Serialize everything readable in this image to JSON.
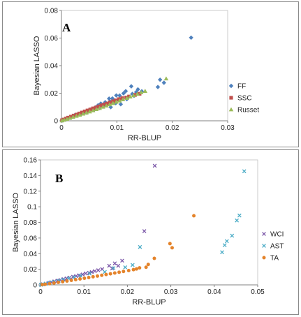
{
  "chart_data": [
    {
      "type": "scatter",
      "panel_label": "A",
      "xlabel": "RR-BLUP",
      "ylabel": "Bayesian LASSO",
      "xlim": [
        0,
        0.03
      ],
      "ylim": [
        0,
        0.08
      ],
      "xticks": [
        "0",
        "0.01",
        "0.02",
        "0.03"
      ],
      "yticks": [
        "0",
        "0.02",
        "0.04",
        "0.06",
        "0.08"
      ],
      "legend_position": "right",
      "series": [
        {
          "name": "FF",
          "color": "#4f81bd",
          "marker": "diamond",
          "points": [
            [
              0.0234,
              0.0603
            ],
            [
              0.0178,
              0.0298
            ],
            [
              0.0174,
              0.0245
            ],
            [
              0.0185,
              0.0276
            ],
            [
              0.0145,
              0.0214
            ],
            [
              0.0138,
              0.0228
            ],
            [
              0.0126,
              0.025
            ],
            [
              0.0116,
              0.0215
            ],
            [
              0.0135,
              0.0208
            ],
            [
              0.0112,
              0.0199
            ],
            [
              0.0105,
              0.0183
            ],
            [
              0.0099,
              0.0184
            ],
            [
              0.0121,
              0.0172
            ],
            [
              0.0128,
              0.0195
            ],
            [
              0.0092,
              0.0162
            ],
            [
              0.0086,
              0.0161
            ],
            [
              0.0098,
              0.0128
            ],
            [
              0.0107,
              0.012
            ],
            [
              0.0118,
              0.0157
            ],
            [
              0.0079,
              0.0135
            ],
            [
              0.0075,
              0.0108
            ],
            [
              0.0071,
              0.0125
            ],
            [
              0.0066,
              0.0112
            ],
            [
              0.0061,
              0.0097
            ],
            [
              0.0057,
              0.0087
            ],
            [
              0.0052,
              0.0081
            ],
            [
              0.0049,
              0.0074
            ],
            [
              0.0045,
              0.0068
            ],
            [
              0.0041,
              0.0061
            ],
            [
              0.0037,
              0.0055
            ],
            [
              0.0033,
              0.0048
            ],
            [
              0.0029,
              0.0043
            ],
            [
              0.0026,
              0.0039
            ],
            [
              0.0022,
              0.0033
            ],
            [
              0.0019,
              0.0028
            ],
            [
              0.0016,
              0.0023
            ],
            [
              0.0013,
              0.0019
            ],
            [
              0.001,
              0.0015
            ],
            [
              0.0007,
              0.001
            ],
            [
              0.0004,
              0.0006
            ],
            [
              0.0002,
              0.0003
            ],
            [
              0.0095,
              0.0145
            ],
            [
              0.0103,
              0.0152
            ],
            [
              0.0088,
              0.0139
            ],
            [
              0.0083,
              0.0118
            ],
            [
              0.0069,
              0.0092
            ],
            [
              0.0059,
              0.0079
            ],
            [
              0.0046,
              0.0058
            ],
            [
              0.0035,
              0.0046
            ],
            [
              0.0024,
              0.0041
            ],
            [
              0.0131,
              0.0181
            ],
            [
              0.0089,
              0.0099
            ]
          ]
        },
        {
          "name": "SSC",
          "color": "#c0504d",
          "marker": "square",
          "points": [
            [
              0.0141,
              0.0196
            ],
            [
              0.0133,
              0.0188
            ],
            [
              0.0122,
              0.0176
            ],
            [
              0.0117,
              0.0169
            ],
            [
              0.011,
              0.0164
            ],
            [
              0.0104,
              0.0157
            ],
            [
              0.0098,
              0.0148
            ],
            [
              0.0093,
              0.0141
            ],
            [
              0.0087,
              0.0133
            ],
            [
              0.0082,
              0.0125
            ],
            [
              0.0077,
              0.0118
            ],
            [
              0.0072,
              0.0112
            ],
            [
              0.0067,
              0.0104
            ],
            [
              0.0062,
              0.0096
            ],
            [
              0.0057,
              0.009
            ],
            [
              0.0052,
              0.0082
            ],
            [
              0.0047,
              0.0075
            ],
            [
              0.0042,
              0.0068
            ],
            [
              0.0037,
              0.006
            ],
            [
              0.0032,
              0.0053
            ],
            [
              0.0027,
              0.0045
            ],
            [
              0.0022,
              0.0038
            ],
            [
              0.0017,
              0.003
            ],
            [
              0.0012,
              0.0023
            ],
            [
              0.0008,
              0.0016
            ],
            [
              0.0004,
              0.0009
            ],
            [
              0.0001,
              0.0004
            ]
          ]
        },
        {
          "name": "Russet",
          "color": "#9bbb59",
          "marker": "triangle",
          "points": [
            [
              0.0189,
              0.0305
            ],
            [
              0.0151,
              0.0215
            ],
            [
              0.0144,
              0.0205
            ],
            [
              0.0137,
              0.0194
            ],
            [
              0.013,
              0.0183
            ],
            [
              0.0124,
              0.0174
            ],
            [
              0.0118,
              0.0164
            ],
            [
              0.0111,
              0.0154
            ],
            [
              0.0105,
              0.0145
            ],
            [
              0.0099,
              0.0136
            ],
            [
              0.0093,
              0.0127
            ],
            [
              0.0087,
              0.0118
            ],
            [
              0.0081,
              0.0109
            ],
            [
              0.0075,
              0.01
            ],
            [
              0.0069,
              0.0091
            ],
            [
              0.0063,
              0.0083
            ],
            [
              0.0057,
              0.0074
            ],
            [
              0.0051,
              0.0066
            ],
            [
              0.0045,
              0.0058
            ],
            [
              0.0039,
              0.005
            ],
            [
              0.0033,
              0.0042
            ],
            [
              0.0027,
              0.0034
            ],
            [
              0.0021,
              0.0027
            ],
            [
              0.0015,
              0.0019
            ],
            [
              0.001,
              0.0012
            ],
            [
              0.0005,
              0.0006
            ],
            [
              0.0001,
              0.0001
            ]
          ]
        }
      ]
    },
    {
      "type": "scatter",
      "panel_label": "B",
      "xlabel": "RR-BLUP",
      "ylabel": "Bayesian LASSO",
      "xlim": [
        0,
        0.05
      ],
      "ylim": [
        0,
        0.16
      ],
      "xticks": [
        "0",
        "0.01",
        "0.02",
        "0.03",
        "0.04",
        "0.05"
      ],
      "yticks": [
        "0",
        "0.02",
        "0.04",
        "0.06",
        "0.08",
        "0.1",
        "0.12",
        "0.14",
        "0.16"
      ],
      "legend_position": "right",
      "series": [
        {
          "name": "WCI",
          "color": "#7b57a8",
          "marker": "x",
          "points": [
            [
              0.0263,
              0.1525
            ],
            [
              0.0239,
              0.0688
            ],
            [
              0.0188,
              0.031
            ],
            [
              0.0179,
              0.0245
            ],
            [
              0.0171,
              0.0275
            ],
            [
              0.0165,
              0.021
            ],
            [
              0.0158,
              0.0245
            ],
            [
              0.0142,
              0.0201
            ],
            [
              0.0133,
              0.0188
            ],
            [
              0.0125,
              0.0176
            ],
            [
              0.0118,
              0.0164
            ],
            [
              0.0112,
              0.0155
            ],
            [
              0.0104,
              0.0146
            ],
            [
              0.0097,
              0.0134
            ],
            [
              0.0089,
              0.0123
            ],
            [
              0.0082,
              0.0113
            ],
            [
              0.0075,
              0.0104
            ],
            [
              0.0067,
              0.0093
            ],
            [
              0.006,
              0.0083
            ],
            [
              0.0053,
              0.0074
            ],
            [
              0.0046,
              0.0063
            ],
            [
              0.0039,
              0.0054
            ],
            [
              0.0032,
              0.0045
            ],
            [
              0.0025,
              0.0035
            ],
            [
              0.0018,
              0.0025
            ],
            [
              0.0012,
              0.0016
            ],
            [
              0.0006,
              0.0008
            ],
            [
              0.0001,
              0.0002
            ]
          ]
        },
        {
          "name": "AST",
          "color": "#4bacc6",
          "marker": "x",
          "points": [
            [
              0.0469,
              0.1455
            ],
            [
              0.0458,
              0.0888
            ],
            [
              0.0452,
              0.0825
            ],
            [
              0.0441,
              0.063
            ],
            [
              0.0429,
              0.056
            ],
            [
              0.0424,
              0.0508
            ],
            [
              0.0418,
              0.0418
            ],
            [
              0.0229,
              0.0485
            ],
            [
              0.0212,
              0.0255
            ],
            [
              0.0195,
              0.0225
            ],
            [
              0.0168,
              0.0215
            ],
            [
              0.0148,
              0.0165
            ],
            [
              0.0113,
              0.0145
            ],
            [
              0.0092,
              0.0118
            ],
            [
              0.0078,
              0.0098
            ],
            [
              0.0065,
              0.0083
            ],
            [
              0.0052,
              0.0067
            ],
            [
              0.0042,
              0.0053
            ],
            [
              0.0031,
              0.0039
            ],
            [
              0.0021,
              0.0027
            ],
            [
              0.0012,
              0.0016
            ],
            [
              0.0005,
              0.0007
            ],
            [
              0.0001,
              0.0001
            ]
          ]
        },
        {
          "name": "TA",
          "color": "#e4832a",
          "marker": "circle",
          "points": [
            [
              0.0353,
              0.0885
            ],
            [
              0.0298,
              0.0528
            ],
            [
              0.0303,
              0.0475
            ],
            [
              0.0262,
              0.034
            ],
            [
              0.0248,
              0.0262
            ],
            [
              0.0243,
              0.0226
            ],
            [
              0.0228,
              0.0218
            ],
            [
              0.0221,
              0.0204
            ],
            [
              0.0214,
              0.0195
            ],
            [
              0.0203,
              0.0183
            ],
            [
              0.0191,
              0.0172
            ],
            [
              0.0181,
              0.0162
            ],
            [
              0.0171,
              0.0152
            ],
            [
              0.0161,
              0.0142
            ],
            [
              0.0151,
              0.0133
            ],
            [
              0.0141,
              0.0123
            ],
            [
              0.0131,
              0.0113
            ],
            [
              0.0121,
              0.0104
            ],
            [
              0.0111,
              0.0094
            ],
            [
              0.0101,
              0.0085
            ],
            [
              0.0091,
              0.0076
            ],
            [
              0.0081,
              0.0067
            ],
            [
              0.0071,
              0.0058
            ],
            [
              0.0061,
              0.0049
            ],
            [
              0.0051,
              0.004
            ],
            [
              0.0041,
              0.0032
            ],
            [
              0.0031,
              0.0024
            ],
            [
              0.0021,
              0.0016
            ],
            [
              0.0011,
              0.0008
            ],
            [
              0.0004,
              0.0003
            ]
          ]
        }
      ]
    }
  ]
}
